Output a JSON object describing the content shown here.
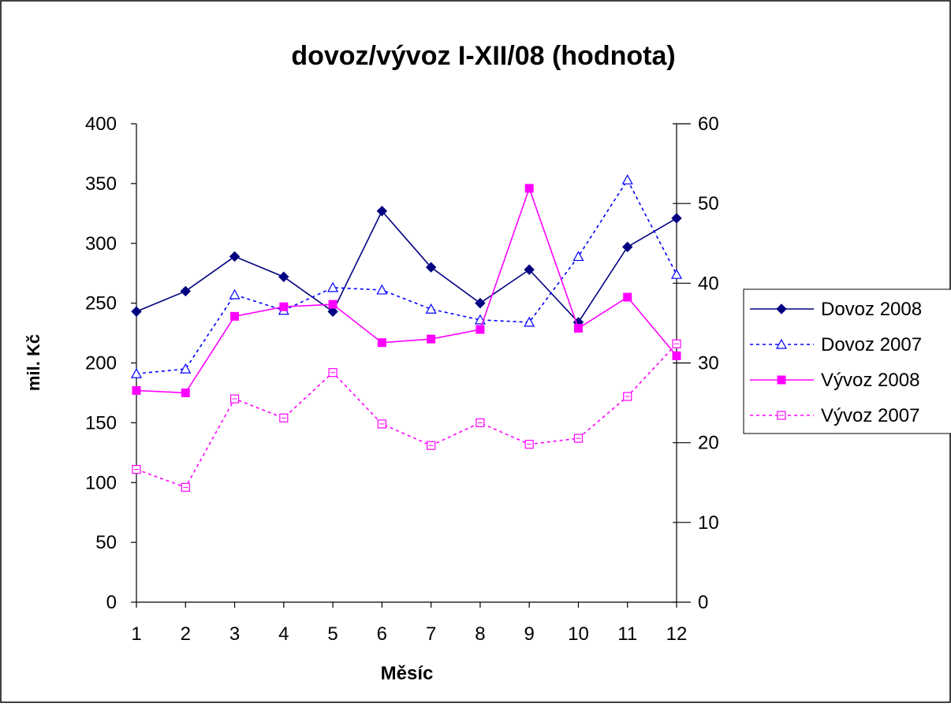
{
  "chart_data": {
    "type": "line",
    "title": "dovoz/vývoz I-XII/08 (hodnota)",
    "xlabel": "Měsíc",
    "ylabel": "mil. Kč",
    "categories": [
      "1",
      "2",
      "3",
      "4",
      "5",
      "6",
      "7",
      "8",
      "9",
      "10",
      "11",
      "12"
    ],
    "ylim": [
      0,
      400
    ],
    "y_ticks": [
      "0",
      "50",
      "100",
      "150",
      "200",
      "250",
      "300",
      "350",
      "400"
    ],
    "y2lim": [
      0,
      60
    ],
    "y2_ticks": [
      "0",
      "10",
      "20",
      "30",
      "40",
      "50",
      "60"
    ],
    "grid": false,
    "legend_position": "right",
    "series": [
      {
        "name": "Dovoz 2008",
        "axis": "left",
        "color": "#000080",
        "dash": "solid",
        "marker": "diamond",
        "values": [
          243,
          260,
          289,
          272,
          243,
          327,
          280,
          250,
          278,
          234,
          297,
          321
        ]
      },
      {
        "name": "Dovoz 2007",
        "axis": "left",
        "color": "#0000FF",
        "dash": "dotted",
        "marker": "triangle-open",
        "values": [
          191,
          195,
          257,
          244,
          263,
          261,
          245,
          236,
          234,
          289,
          353,
          274
        ]
      },
      {
        "name": "Vývoz 2008",
        "axis": "left",
        "color": "#FF00FF",
        "dash": "solid",
        "marker": "square",
        "values": [
          177,
          175,
          239,
          247,
          249,
          217,
          220,
          228,
          346,
          229,
          255,
          206
        ]
      },
      {
        "name": "Vývoz 2007",
        "axis": "left",
        "color": "#FF00FF",
        "dash": "dotted",
        "marker": "square-open",
        "values": [
          111,
          96,
          170,
          154,
          192,
          149,
          131,
          150,
          132,
          137,
          172,
          216
        ]
      }
    ]
  }
}
